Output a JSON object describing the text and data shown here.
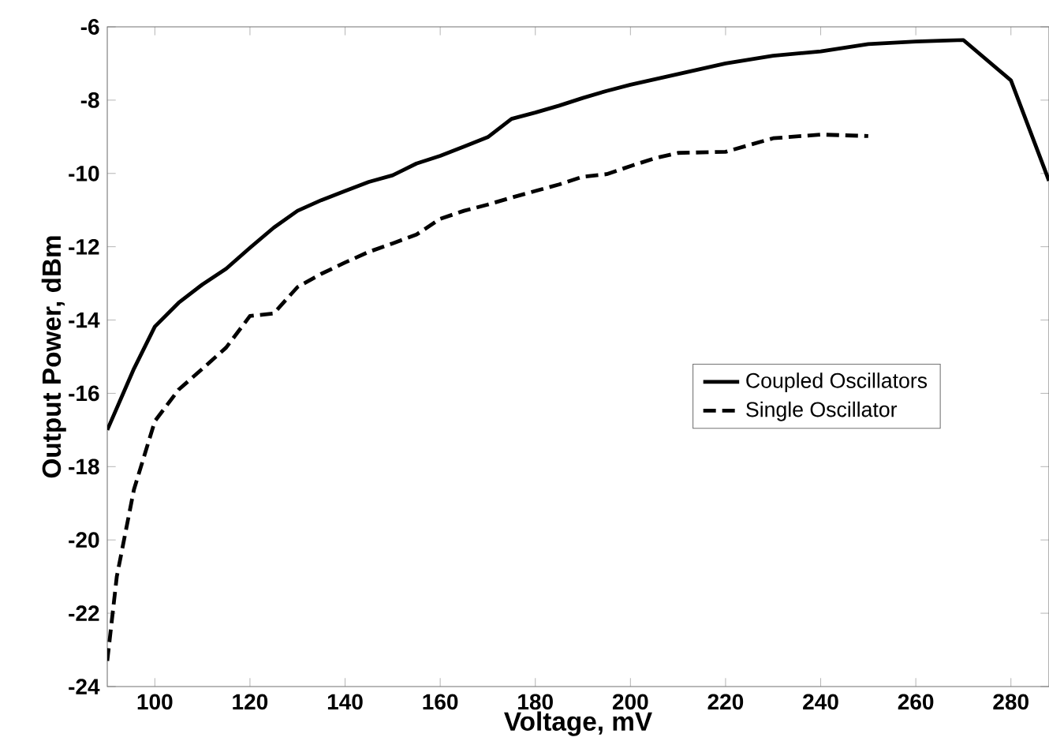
{
  "chart_data": {
    "type": "line",
    "xlabel": "Voltage, mV",
    "ylabel": "Output Power, dBm",
    "xlim": [
      90,
      288
    ],
    "ylim": [
      -24,
      -6
    ],
    "xticks": [
      100,
      120,
      140,
      160,
      180,
      200,
      220,
      240,
      260,
      280
    ],
    "yticks": [
      -24,
      -22,
      -20,
      -18,
      -16,
      -14,
      -12,
      -10,
      -8,
      -6
    ],
    "grid": false,
    "legend": "right",
    "marker": "none",
    "series": [
      {
        "name": "Coupled Oscillators",
        "color": "#000000",
        "line_style": "solid",
        "x": [
          90,
          95.6,
          100,
          105,
          110,
          115,
          120,
          125,
          130,
          135,
          140,
          145,
          150,
          155,
          160,
          165,
          170,
          175,
          180,
          185,
          190,
          195,
          200,
          210,
          220,
          230,
          240,
          250,
          260,
          270,
          280,
          288
        ],
        "values": [
          -17.0,
          -15.33,
          -14.18,
          -13.53,
          -13.03,
          -12.6,
          -12.03,
          -11.48,
          -11.02,
          -10.73,
          -10.48,
          -10.23,
          -10.05,
          -9.73,
          -9.52,
          -9.27,
          -9.01,
          -8.51,
          -8.34,
          -8.15,
          -7.94,
          -7.75,
          -7.58,
          -7.29,
          -7.0,
          -6.79,
          -6.67,
          -6.47,
          -6.4,
          -6.36,
          -7.46,
          -10.2
        ]
      },
      {
        "name": "Single Oscillator",
        "color": "#000000",
        "line_style": "dashed",
        "x": [
          90,
          92,
          95.6,
          100,
          105,
          110,
          115,
          120,
          125,
          130,
          135,
          140,
          145,
          150,
          155,
          160,
          165,
          170,
          175,
          180,
          185,
          190,
          195,
          200,
          205,
          210,
          220,
          230,
          240,
          250
        ],
        "values": [
          -23.3,
          -21.0,
          -18.63,
          -16.76,
          -15.9,
          -15.33,
          -14.75,
          -13.89,
          -13.82,
          -13.1,
          -12.74,
          -12.43,
          -12.14,
          -11.91,
          -11.67,
          -11.24,
          -11.02,
          -10.85,
          -10.66,
          -10.48,
          -10.3,
          -10.09,
          -10.02,
          -9.8,
          -9.59,
          -9.44,
          -9.41,
          -9.04,
          -8.94,
          -8.98
        ]
      }
    ]
  }
}
